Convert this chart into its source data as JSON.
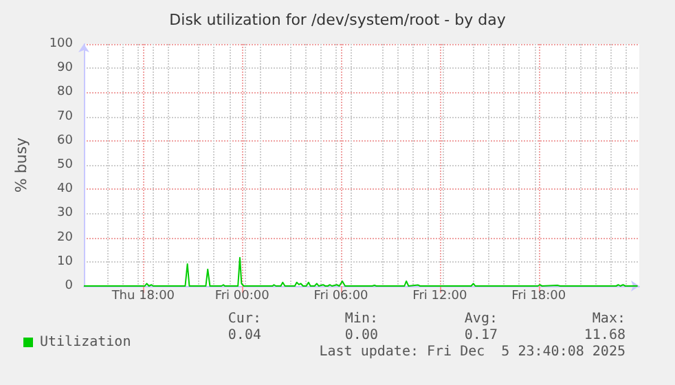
{
  "chart_data": {
    "type": "line",
    "title": "Disk utilization for /dev/system/root - by day",
    "ylabel": "% busy",
    "xlim": [
      "2025-12-04T14:24",
      "2025-12-06T00:06"
    ],
    "xticks": [
      {
        "value": "2025-12-04T18:00",
        "label": "Thu 18:00"
      },
      {
        "value": "2025-12-05T00:00",
        "label": "Fri 00:00"
      },
      {
        "value": "2025-12-05T06:00",
        "label": "Fri 06:00"
      },
      {
        "value": "2025-12-05T12:00",
        "label": "Fri 12:00"
      },
      {
        "value": "2025-12-05T18:00",
        "label": "Fri 18:00"
      }
    ],
    "ylim": [
      0,
      100
    ],
    "yticks": [
      0,
      10,
      20,
      30,
      40,
      50,
      60,
      70,
      80,
      90,
      100
    ],
    "grid": true,
    "legend": "bottom left",
    "marker": "none",
    "line_style": "solid",
    "annotations": [
      "Cur:",
      "Min:",
      "Avg:",
      "Max:",
      "0.04",
      "0.00",
      "0.17",
      "11.68",
      "Last update: Fri Dec  5 23:40:08 2025"
    ],
    "series": [
      {
        "name": "Utilization",
        "color": "#00cc00",
        "x": [
          "2025-12-04T14:24",
          "2025-12-04T18:06",
          "2025-12-04T18:13",
          "2025-12-04T18:21",
          "2025-12-04T18:30",
          "2025-12-04T18:36",
          "2025-12-04T20:33",
          "2025-12-04T20:41",
          "2025-12-04T20:48",
          "2025-12-04T21:48",
          "2025-12-04T21:55",
          "2025-12-04T22:03",
          "2025-12-04T22:45",
          "2025-12-04T22:52",
          "2025-12-04T22:57",
          "2025-12-04T23:45",
          "2025-12-04T23:52",
          "2025-12-04T23:58",
          "2025-12-05T00:06",
          "2025-12-05T01:51",
          "2025-12-05T01:56",
          "2025-12-05T02:03",
          "2025-12-05T02:21",
          "2025-12-05T02:28",
          "2025-12-05T02:36",
          "2025-12-05T03:12",
          "2025-12-05T03:19",
          "2025-12-05T03:27",
          "2025-12-05T03:34",
          "2025-12-05T03:42",
          "2025-12-05T03:54",
          "2025-12-05T04:02",
          "2025-12-05T04:09",
          "2025-12-05T04:24",
          "2025-12-05T04:32",
          "2025-12-05T04:39",
          "2025-12-05T04:55",
          "2025-12-05T05:03",
          "2025-12-05T05:12",
          "2025-12-05T05:20",
          "2025-12-05T05:27",
          "2025-12-05T05:45",
          "2025-12-05T05:54",
          "2025-12-05T06:05",
          "2025-12-05T06:15",
          "2025-12-05T07:54",
          "2025-12-05T08:02",
          "2025-12-05T08:09",
          "2025-12-05T09:51",
          "2025-12-05T09:58",
          "2025-12-05T10:06",
          "2025-12-05T10:41",
          "2025-12-05T10:48",
          "2025-12-05T13:54",
          "2025-12-05T14:02",
          "2025-12-05T14:09",
          "2025-12-05T17:57",
          "2025-12-05T18:04",
          "2025-12-05T18:12",
          "2025-12-05T19:08",
          "2025-12-05T19:18",
          "2025-12-05T22:42",
          "2025-12-05T22:50",
          "2025-12-05T22:57",
          "2025-12-05T23:07",
          "2025-12-05T23:15",
          "2025-12-06T00:00"
        ],
        "values": [
          0,
          0,
          1,
          0,
          0.5,
          0,
          0,
          9.1,
          0,
          0,
          6.9,
          0,
          0,
          0.5,
          0,
          0,
          11.7,
          1,
          0,
          0,
          0.5,
          0,
          0,
          1.5,
          0,
          0,
          1.5,
          0.6,
          1,
          0,
          0,
          1.5,
          0,
          0,
          1,
          0,
          0.5,
          0,
          0,
          0.5,
          0,
          0.5,
          0,
          2,
          0,
          0,
          0.3,
          0,
          0,
          2,
          0,
          0.4,
          0,
          0,
          1,
          0,
          0,
          0.5,
          0,
          0.3,
          0,
          0,
          0.5,
          0,
          0.5,
          0,
          0
        ]
      }
    ]
  }
}
